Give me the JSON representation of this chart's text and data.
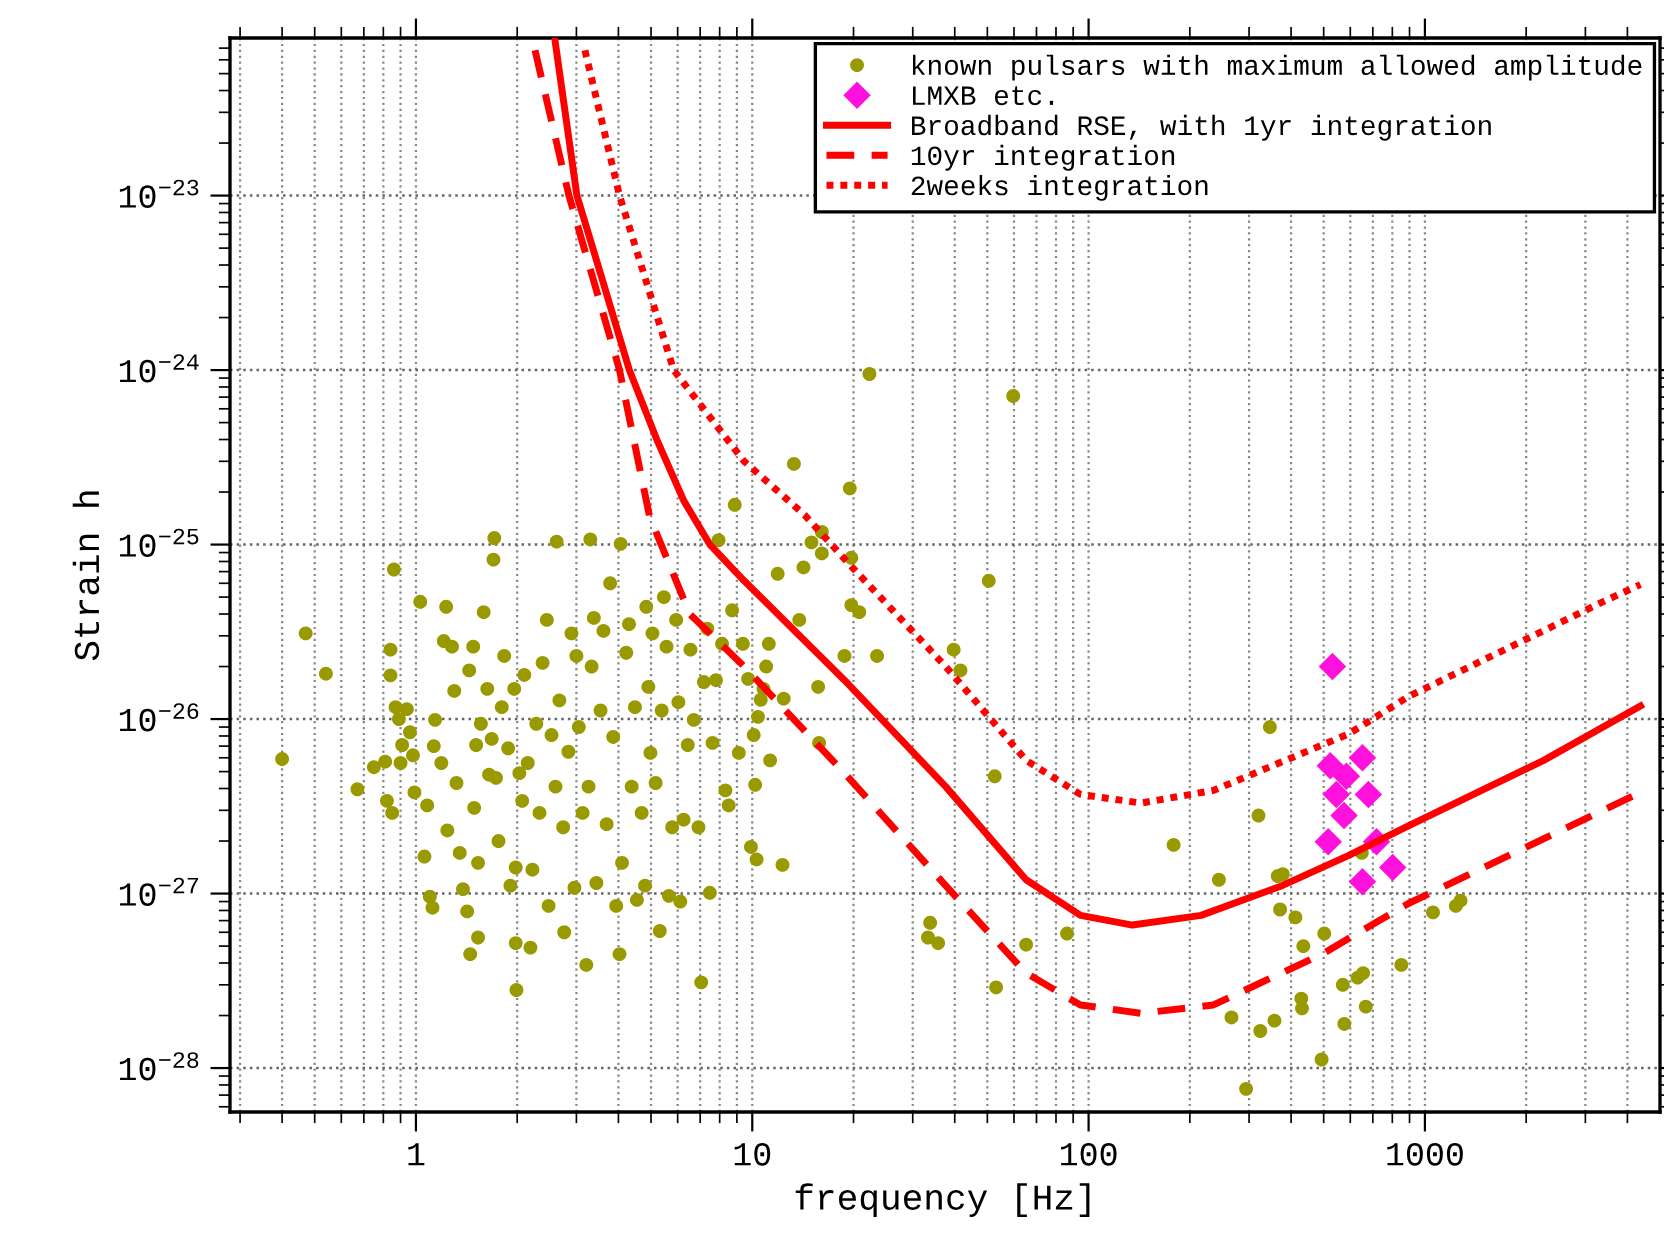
{
  "chart_data": {
    "type": "scatter",
    "xlabel": "frequency [Hz]",
    "ylabel": "Strain h",
    "log": "xy",
    "grid": true,
    "legend": "top right",
    "xlim": [
      0.28,
      5000
    ],
    "ylim": [
      5.6e-29,
      8e-23
    ],
    "xticks": [
      {
        "value": 0.3,
        "label": null
      },
      {
        "value": 0.4,
        "label": null
      },
      {
        "value": 0.5,
        "label": null
      },
      {
        "value": 0.6,
        "label": null
      },
      {
        "value": 0.7,
        "label": null
      },
      {
        "value": 0.8,
        "label": null
      },
      {
        "value": 0.9,
        "label": null
      },
      1,
      {
        "value": 2,
        "label": null
      },
      {
        "value": 3,
        "label": null
      },
      {
        "value": 4,
        "label": null
      },
      {
        "value": 5,
        "label": null
      },
      {
        "value": 6,
        "label": null
      },
      {
        "value": 7,
        "label": null
      },
      {
        "value": 8,
        "label": null
      },
      {
        "value": 9,
        "label": null
      },
      10,
      {
        "value": 20,
        "label": null
      },
      {
        "value": 30,
        "label": null
      },
      {
        "value": 40,
        "label": null
      },
      {
        "value": 50,
        "label": null
      },
      {
        "value": 60,
        "label": null
      },
      {
        "value": 70,
        "label": null
      },
      {
        "value": 80,
        "label": null
      },
      {
        "value": 90,
        "label": null
      },
      100,
      {
        "value": 200,
        "label": null
      },
      {
        "value": 300,
        "label": null
      },
      {
        "value": 400,
        "label": null
      },
      {
        "value": 500,
        "label": null
      },
      {
        "value": 600,
        "label": null
      },
      {
        "value": 700,
        "label": null
      },
      {
        "value": 800,
        "label": null
      },
      {
        "value": 900,
        "label": null
      },
      1000,
      {
        "value": 2000,
        "label": null
      },
      {
        "value": 3000,
        "label": null
      },
      {
        "value": 4000,
        "label": null
      }
    ],
    "yticks": [
      {
        "value": 6e-29,
        "label": null
      },
      {
        "value": 7e-29,
        "label": null
      },
      {
        "value": 8e-29,
        "label": null
      },
      {
        "value": 9e-29,
        "label": null
      },
      {
        "value": 1e-28,
        "label": "10$^{−28}$"
      },
      {
        "value": 2e-28,
        "label": null
      },
      {
        "value": 3e-28,
        "label": null
      },
      {
        "value": 4e-28,
        "label": null
      },
      {
        "value": 5e-28,
        "label": null
      },
      {
        "value": 6e-28,
        "label": null
      },
      {
        "value": 7e-28,
        "label": null
      },
      {
        "value": 8e-28,
        "label": null
      },
      {
        "value": 9e-28,
        "label": null
      },
      {
        "value": 1e-27,
        "label": "10$^{−27}$"
      },
      {
        "value": 2e-27,
        "label": null
      },
      {
        "value": 3e-27,
        "label": null
      },
      {
        "value": 4e-27,
        "label": null
      },
      {
        "value": 5e-27,
        "label": null
      },
      {
        "value": 6e-27,
        "label": null
      },
      {
        "value": 7e-27,
        "label": null
      },
      {
        "value": 8e-27,
        "label": null
      },
      {
        "value": 9e-27,
        "label": null
      },
      {
        "value": 1e-26,
        "label": "10$^{−26}$"
      },
      {
        "value": 2e-26,
        "label": null
      },
      {
        "value": 3e-26,
        "label": null
      },
      {
        "value": 4e-26,
        "label": null
      },
      {
        "value": 5e-26,
        "label": null
      },
      {
        "value": 6e-26,
        "label": null
      },
      {
        "value": 7e-26,
        "label": null
      },
      {
        "value": 8e-26,
        "label": null
      },
      {
        "value": 9e-26,
        "label": null
      },
      {
        "value": 1e-25,
        "label": "10$^{−25}$"
      },
      {
        "value": 2e-25,
        "label": null
      },
      {
        "value": 3e-25,
        "label": null
      },
      {
        "value": 4e-25,
        "label": null
      },
      {
        "value": 5e-25,
        "label": null
      },
      {
        "value": 6e-25,
        "label": null
      },
      {
        "value": 7e-25,
        "label": null
      },
      {
        "value": 8e-25,
        "label": null
      },
      {
        "value": 9e-25,
        "label": null
      },
      {
        "value": 1e-24,
        "label": "10$^{−24}$"
      },
      {
        "value": 2e-24,
        "label": null
      },
      {
        "value": 3e-24,
        "label": null
      },
      {
        "value": 4e-24,
        "label": null
      },
      {
        "value": 5e-24,
        "label": null
      },
      {
        "value": 6e-24,
        "label": null
      },
      {
        "value": 7e-24,
        "label": null
      },
      {
        "value": 8e-24,
        "label": null
      },
      {
        "value": 9e-24,
        "label": null
      },
      {
        "value": 1e-23,
        "label": "10$^{−23}$"
      },
      {
        "value": 2e-23,
        "label": null
      },
      {
        "value": 3e-23,
        "label": null
      },
      {
        "value": 4e-23,
        "label": null
      },
      {
        "value": 5e-23,
        "label": null
      },
      {
        "value": 6e-23,
        "label": null
      },
      {
        "value": 7e-23,
        "label": null
      }
    ],
    "series": [
      {
        "name": "known pulsars with maximum allowed amplitude",
        "type": "scatter",
        "marker": "circle",
        "color": "#999900",
        "x": [
          0.4,
          0.47,
          0.54,
          0.67,
          0.75,
          0.81,
          0.82,
          0.85,
          0.84,
          0.84,
          0.86,
          0.87,
          0.89,
          0.9,
          0.91,
          0.94,
          0.96,
          0.98,
          0.99,
          1.03,
          1.06,
          1.08,
          1.1,
          1.12,
          1.13,
          1.14,
          1.19,
          1.21,
          1.23,
          1.24,
          1.28,
          1.3,
          1.32,
          1.35,
          1.38,
          1.42,
          1.44,
          1.45,
          1.48,
          1.49,
          1.51,
          1.53,
          1.53,
          1.56,
          1.59,
          1.63,
          1.65,
          1.68,
          1.7,
          1.71,
          1.73,
          1.76,
          1.8,
          1.83,
          1.88,
          1.91,
          1.96,
          1.98,
          1.98,
          1.99,
          2.03,
          2.07,
          2.1,
          2.15,
          2.19,
          2.22,
          2.28,
          2.33,
          2.38,
          2.45,
          2.48,
          2.53,
          2.6,
          2.62,
          2.67,
          2.74,
          2.76,
          2.84,
          2.9,
          2.96,
          3.0,
          3.05,
          3.13,
          3.21,
          3.26,
          3.3,
          3.33,
          3.38,
          3.44,
          3.54,
          3.61,
          3.69,
          3.78,
          3.86,
          3.94,
          4.03,
          4.06,
          4.1,
          4.22,
          4.3,
          4.38,
          4.48,
          4.54,
          4.69,
          4.8,
          4.84,
          4.91,
          4.98,
          5.05,
          5.16,
          5.31,
          5.38,
          5.46,
          5.56,
          5.65,
          5.78,
          5.94,
          6.03,
          6.11,
          6.25,
          6.43,
          6.55,
          6.7,
          6.92,
          7.05,
          7.18,
          7.35,
          7.48,
          7.62,
          7.8,
          7.94,
          8.13,
          8.32,
          8.51,
          8.71,
          8.87,
          9.12,
          9.38,
          9.72,
          9.91,
          10.1,
          10.3,
          10.4,
          10.8,
          11.3,
          11.9,
          12.3,
          13.8,
          14.2,
          15.0,
          15.7,
          15.8,
          22.3,
          59.7,
          13.3,
          19.5,
          16.1,
          16.1,
          19.7,
          50.5,
          19.7,
          20.8,
          11.2,
          23.5,
          18.8,
          39.7,
          41.6,
          11.0,
          12.4,
          10.6,
          10.2,
          52.6,
          179,
          33.8,
          33.3,
          35.7,
          86.3,
          65.2,
          53.1,
          346,
          320,
          244,
          365,
          378,
          649,
          371,
          412,
          435,
          502,
          570,
          631,
          655,
          851,
          1057,
          1236,
          1276,
          429,
          431,
          667,
          266,
          357,
          324,
          576,
          493,
          294
        ],
        "values": [
          5.9e-27,
          3.1e-26,
          1.82e-26,
          3.96e-27,
          5.3e-27,
          5.7e-27,
          3.4e-27,
          2.9e-27,
          2.5e-26,
          1.78e-26,
          7.2e-26,
          1.17e-26,
          1e-26,
          5.6e-27,
          7.1e-27,
          1.14e-26,
          8.4e-27,
          6.2e-27,
          3.8e-27,
          4.7e-26,
          1.63e-27,
          3.2e-27,
          9.6e-28,
          8.3e-28,
          7e-27,
          9.9e-27,
          5.6e-27,
          2.8e-26,
          4.4e-26,
          2.3e-27,
          2.6e-26,
          1.45e-26,
          4.3e-27,
          1.71e-27,
          1.06e-27,
          7.9e-28,
          1.9e-26,
          4.5e-28,
          2.6e-26,
          3.1e-27,
          7.1e-27,
          1.5e-27,
          5.6e-28,
          9.4e-27,
          4.1e-26,
          1.49e-26,
          4.8e-27,
          7.7e-27,
          8.2e-26,
          1.09e-25,
          4.6e-27,
          2e-27,
          1.17e-26,
          2.3e-26,
          6.8e-27,
          1.11e-27,
          1.49e-26,
          1.41e-27,
          5.2e-28,
          2.8e-28,
          4.9e-27,
          3.4e-27,
          1.79e-26,
          5.6e-27,
          4.9e-28,
          1.37e-27,
          9.4e-27,
          2.9e-27,
          2.1e-26,
          3.7e-26,
          8.5e-28,
          8.1e-27,
          4.1e-27,
          1.04e-25,
          1.28e-26,
          2.4e-27,
          6e-28,
          6.5e-27,
          3.1e-26,
          1.08e-27,
          2.3e-26,
          9e-27,
          2.9e-27,
          3.9e-28,
          4.1e-27,
          1.07e-25,
          2e-26,
          3.8e-26,
          1.15e-27,
          1.12e-26,
          3.2e-26,
          2.5e-27,
          6e-26,
          7.9e-27,
          8.5e-28,
          4.5e-28,
          1.01e-25,
          1.5e-27,
          2.4e-26,
          3.5e-26,
          4.1e-27,
          1.17e-26,
          9.2e-28,
          2.9e-27,
          1.11e-27,
          4.4e-26,
          1.53e-26,
          6.4e-27,
          3.1e-26,
          4.3e-27,
          6.1e-28,
          1.12e-26,
          5e-26,
          2.6e-26,
          9.7e-28,
          2.4e-27,
          3.7e-26,
          1.25e-26,
          9e-28,
          2.65e-27,
          7.1e-27,
          2.5e-26,
          9.9e-27,
          2.4e-27,
          3.1e-28,
          1.63e-26,
          3.3e-26,
          1.01e-27,
          7.3e-27,
          1.67e-26,
          1.06e-25,
          2.7e-26,
          3.9e-27,
          3.2e-27,
          4.2e-26,
          1.69e-25,
          6.4e-27,
          2.7e-26,
          1.7e-26,
          1.85e-27,
          8.1e-27,
          1.57e-27,
          1.03e-26,
          1.49e-26,
          5.8e-27,
          6.8e-26,
          1.46e-27,
          3.7e-26,
          7.4e-26,
          1.03e-25,
          1.53e-26,
          7.3e-27,
          9.5e-25,
          7.1e-25,
          2.9e-25,
          2.1e-25,
          1.18e-25,
          8.9e-26,
          8.4e-26,
          6.2e-26,
          4.5e-26,
          4.1e-26,
          2.7e-26,
          2.3e-26,
          2.3e-26,
          2.5e-26,
          1.9e-26,
          2e-26,
          1.31e-26,
          1.29e-26,
          4.2e-27,
          4.7e-27,
          1.9e-27,
          6.8e-28,
          5.6e-28,
          5.2e-28,
          5.9e-28,
          5.1e-28,
          2.9e-28,
          9e-27,
          2.8e-27,
          1.2e-27,
          1.26e-27,
          1.29e-27,
          1.71e-27,
          8.1e-28,
          7.3e-28,
          5e-28,
          5.9e-28,
          3e-28,
          3.3e-28,
          3.5e-28,
          3.9e-28,
          7.8e-28,
          8.5e-28,
          9.1e-28,
          2.5e-28,
          2.2e-28,
          2.25e-28,
          1.95e-28,
          1.87e-28,
          1.63e-28,
          1.79e-28,
          1.12e-28,
          7.6e-29
        ]
      },
      {
        "name": "LMXB etc.",
        "type": "scatter",
        "marker": "diamond",
        "color": "#ff11dd",
        "x": [
          531,
          523,
          652,
          584,
          545,
          679,
          575,
          516,
          718,
          652,
          802
        ],
        "values": [
          2e-26,
          5.4e-27,
          6e-27,
          4.7e-27,
          3.7e-27,
          3.7e-27,
          2.8e-27,
          1.98e-27,
          1.98e-27,
          1.17e-27,
          1.41e-27
        ]
      },
      {
        "name": "Broadband RSE, with 1yr integration",
        "type": "line",
        "line_style": "solid",
        "color": "#ff0000",
        "x": [
          2.59,
          3.01,
          3.6,
          4.31,
          5.23,
          6.26,
          7.48,
          9.46,
          18.8,
          37.6,
          65.2,
          94.6,
          135,
          216,
          376,
          592,
          896,
          2255,
          4375
        ],
        "values": [
          7.8e-23,
          1e-23,
          3.2e-24,
          1e-24,
          3.9e-25,
          1.78e-25,
          1e-25,
          6.2e-26,
          1.67e-26,
          4.1e-27,
          1.2e-27,
          7.5e-28,
          6.6e-28,
          7.5e-28,
          1.11e-27,
          1.65e-27,
          2.45e-27,
          5.8e-27,
          1.19e-26
        ]
      },
      {
        "name": "10yr integration",
        "type": "line",
        "line_style": "dashed",
        "color": "#ff0000",
        "x": [
          2.26,
          2.85,
          4.03,
          4.95,
          6.52,
          9.46,
          15.8,
          18.8,
          37.6,
          65.2,
          94.6,
          143,
          235,
          495,
          896,
          4375
        ],
        "values": [
          6.8e-23,
          1e-23,
          1e-24,
          1.45e-25,
          4e-26,
          2e-26,
          7e-27,
          4.9e-27,
          1.11e-27,
          3.5e-28,
          2.3e-28,
          2.06e-28,
          2.3e-28,
          4.5e-28,
          8.8e-28,
          3.8e-27
        ]
      },
      {
        "name": "2weeks integration",
        "type": "line",
        "line_style": "dotted",
        "color": "#ff0000",
        "x": [
          3.18,
          4.03,
          5.84,
          9.46,
          14.3,
          19.7,
          37.6,
          65.2,
          94.6,
          143,
          235,
          592,
          896,
          3459,
          4375
        ],
        "values": [
          6.8e-23,
          1e-23,
          1e-24,
          3e-25,
          1.48e-25,
          7.5e-26,
          2e-26,
          5.8e-27,
          3.7e-27,
          3.3e-27,
          3.9e-27,
          8.2e-27,
          1.35e-26,
          4.8e-26,
          5.9e-26
        ]
      }
    ]
  }
}
